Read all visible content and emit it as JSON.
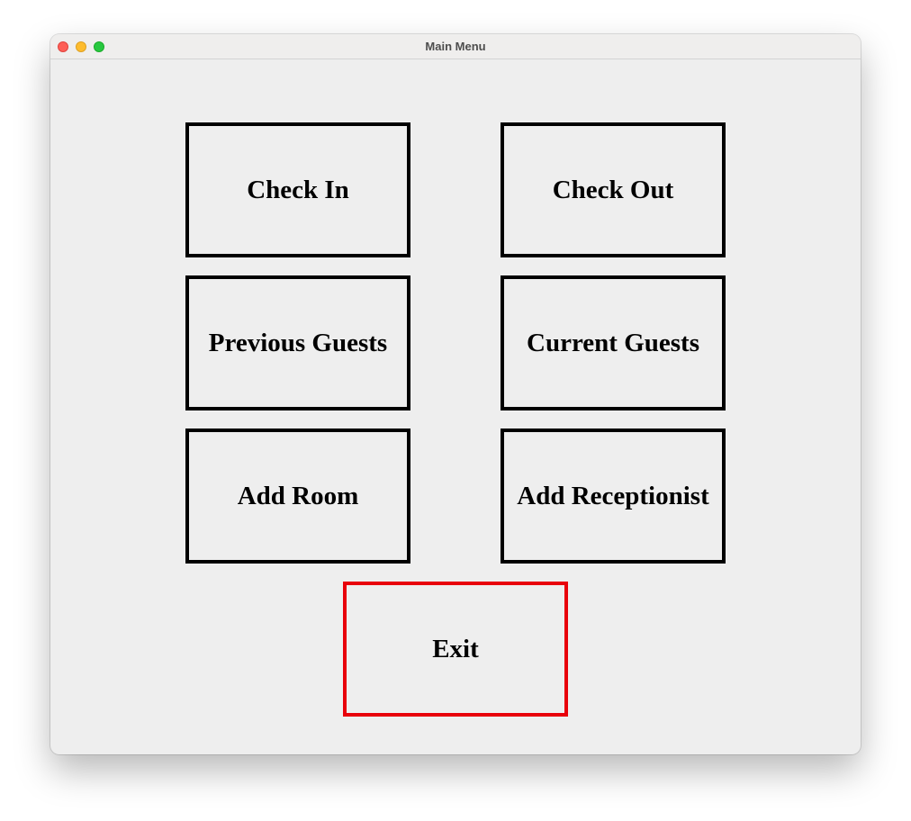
{
  "window": {
    "title": "Main Menu"
  },
  "menu": {
    "check_in": "Check In",
    "check_out": "Check Out",
    "previous_guests": "Previous Guests",
    "current_guests": "Current Guests",
    "add_room": "Add Room",
    "add_receptionist": "Add Receptionist",
    "exit": "Exit"
  },
  "colors": {
    "button_border": "#000000",
    "exit_border": "#e8000b",
    "background": "#eeeeee"
  }
}
